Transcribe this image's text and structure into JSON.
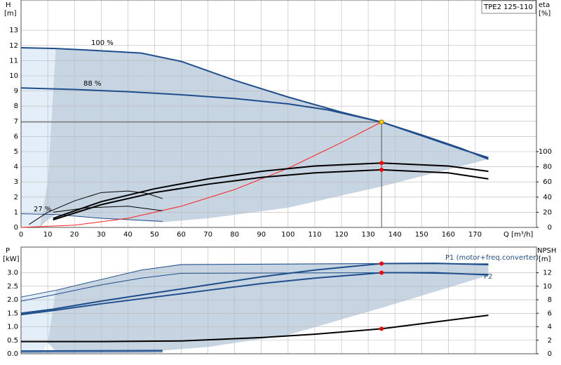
{
  "chart_data": [
    {
      "type": "line",
      "title": "TPE2 125-110",
      "x_label": "Q [m³/h]",
      "y_label": "H",
      "y_unit": "[m]",
      "y2_label": "eta",
      "y2_unit": "[%]",
      "xlim": [
        0,
        193
      ],
      "xticks": [
        0,
        10,
        20,
        30,
        40,
        50,
        60,
        70,
        80,
        90,
        100,
        110,
        120,
        130,
        140,
        150,
        160,
        170
      ],
      "ylim": [
        0,
        15
      ],
      "yticks": [
        0,
        1,
        2,
        3,
        4,
        5,
        6,
        7,
        8,
        9,
        10,
        11,
        12,
        13
      ],
      "y2lim": [
        0,
        300
      ],
      "y2ticks": [
        0,
        20,
        40,
        60,
        80,
        100
      ],
      "grid": true,
      "regions": [
        {
          "color": "#e4eef8",
          "x": [
            0,
            13,
            10,
            7,
            0
          ],
          "values": [
            11.85,
            11.8,
            3,
            0,
            0
          ]
        },
        {
          "color": "#c7d5e3",
          "x": [
            13,
            30,
            45,
            60,
            80,
            100,
            120,
            135,
            150,
            165,
            175,
            135,
            100,
            70,
            53,
            30,
            13,
            10,
            7,
            10
          ],
          "values": [
            11.8,
            11.65,
            11.5,
            10.95,
            9.7,
            8.6,
            7.6,
            6.95,
            6.1,
            5.2,
            4.5,
            2.7,
            1.3,
            0.6,
            0.35,
            0.6,
            0.85,
            0.5,
            0,
            3
          ]
        }
      ],
      "series": [
        {
          "name": "100 %",
          "color": "#1f4e8c",
          "style": "thick",
          "x": [
            0,
            13,
            30,
            45,
            60,
            80,
            100,
            120,
            135,
            150,
            165,
            175
          ],
          "values": [
            11.85,
            11.8,
            11.65,
            11.5,
            10.95,
            9.7,
            8.6,
            7.6,
            6.95,
            6.1,
            5.2,
            4.5
          ]
        },
        {
          "name": "88 %",
          "color": "#1f4e8c",
          "style": "thick",
          "x": [
            0,
            20,
            40,
            60,
            80,
            100,
            115,
            135,
            150,
            165,
            175
          ],
          "values": [
            9.2,
            9.1,
            8.95,
            8.75,
            8.5,
            8.15,
            7.75,
            6.95,
            6.05,
            5.15,
            4.6
          ]
        },
        {
          "name": "27 %",
          "color": "#1f4e8c",
          "style": "thin",
          "x": [
            0,
            13,
            30,
            53
          ],
          "values": [
            0.9,
            0.85,
            0.6,
            0.4
          ]
        },
        {
          "color": "#ff2020",
          "style": "thin",
          "x": [
            0,
            20,
            40,
            60,
            80,
            100,
            120,
            135
          ],
          "values": [
            0,
            0.15,
            0.6,
            1.4,
            2.5,
            3.9,
            5.6,
            6.95
          ]
        },
        {
          "axis": "y2",
          "color": "#000000",
          "style": "thick",
          "x": [
            12,
            30,
            50,
            70,
            90,
            110,
            135,
            160,
            175
          ],
          "values": [
            12,
            34,
            51,
            64,
            74,
            81,
            85,
            81,
            74
          ]
        },
        {
          "axis": "y2",
          "color": "#000000",
          "style": "thick",
          "x": [
            12,
            30,
            50,
            70,
            90,
            110,
            135,
            160,
            175
          ],
          "values": [
            10,
            30,
            46,
            57,
            66,
            72,
            76,
            72,
            64
          ]
        },
        {
          "axis": "y2",
          "color": "#000000",
          "style": "thin",
          "x": [
            3,
            10,
            20,
            30,
            40,
            47,
            53
          ],
          "values": [
            4,
            20,
            35,
            46,
            48,
            45,
            38
          ]
        },
        {
          "axis": "y2",
          "color": "#000000",
          "style": "thin",
          "x": [
            12,
            25,
            40,
            53
          ],
          "values": [
            20,
            26,
            28,
            22
          ]
        }
      ],
      "points": [
        {
          "x": 135,
          "value": 6.95,
          "color": "#ffd700",
          "crosshair": true
        },
        {
          "x": 135,
          "value": 85,
          "axis": "y2",
          "color": "#ff0000"
        },
        {
          "x": 135,
          "value": 76,
          "axis": "y2",
          "color": "#ff0000"
        }
      ]
    },
    {
      "type": "line",
      "y_label": "P",
      "y_unit": "[kW]",
      "y2_label": "NPSH",
      "y2_unit": "[m]",
      "xlim": [
        0,
        193
      ],
      "xticks": [
        0,
        10,
        20,
        30,
        40,
        50,
        60,
        70,
        80,
        90,
        100,
        110,
        120,
        130,
        140,
        150,
        160,
        170
      ],
      "ylim": [
        0,
        3.95
      ],
      "yticks": [
        {
          "value": 0,
          "label": "0.0"
        },
        0.5,
        {
          "value": 1,
          "label": "1.0"
        },
        1.5,
        {
          "value": 2,
          "label": "2.0"
        },
        2.5,
        {
          "value": 3,
          "label": "3.0"
        }
      ],
      "y2lim": [
        0,
        15.8
      ],
      "y2ticks": [
        0,
        2,
        4,
        6,
        8,
        10,
        12
      ],
      "grid": true,
      "regions": [
        {
          "color": "#e4eef8",
          "x": [
            0,
            13,
            10,
            8,
            0
          ],
          "values": [
            2.1,
            2.35,
            0.4,
            0.05,
            0.05
          ]
        },
        {
          "color": "#c7d5e3",
          "x": [
            13,
            30,
            45,
            60,
            135,
            175,
            175,
            135,
            100,
            70,
            53,
            13,
            10
          ],
          "values": [
            2.35,
            2.75,
            3.1,
            3.33,
            3.36,
            3.35,
            2.9,
            1.7,
            0.7,
            0.25,
            0.12,
            0.1,
            0.4
          ]
        }
      ],
      "series": [
        {
          "color": "#1f4e8c",
          "style": "thin",
          "x": [
            0,
            13,
            30,
            45,
            60,
            135,
            175
          ],
          "values": [
            2.1,
            2.35,
            2.75,
            3.1,
            3.3,
            3.34,
            3.33
          ]
        },
        {
          "color": "#1f4e8c",
          "style": "thin",
          "x": [
            0,
            13,
            30,
            45,
            60,
            135,
            175
          ],
          "values": [
            1.95,
            2.2,
            2.55,
            2.8,
            2.98,
            3.0,
            2.95
          ]
        },
        {
          "name": "P1 (motor+freq.converter)",
          "color": "#1f4e8c",
          "style": "thick",
          "x": [
            0,
            12,
            30,
            50,
            70,
            90,
            110,
            135,
            155,
            175
          ],
          "values": [
            1.5,
            1.65,
            1.95,
            2.25,
            2.55,
            2.85,
            3.1,
            3.34,
            3.35,
            3.3
          ]
        },
        {
          "name": "P2",
          "color": "#1f4e8c",
          "style": "thick",
          "x": [
            0,
            12,
            30,
            50,
            70,
            90,
            110,
            135,
            155,
            175
          ],
          "values": [
            1.45,
            1.6,
            1.85,
            2.1,
            2.35,
            2.6,
            2.8,
            3.0,
            3.0,
            2.92
          ]
        },
        {
          "axis": "y2",
          "color": "#000000",
          "style": "thick",
          "x": [
            0,
            30,
            60,
            90,
            110,
            135,
            155,
            175
          ],
          "values": [
            1.8,
            1.8,
            1.9,
            2.4,
            2.9,
            3.7,
            4.7,
            5.7
          ]
        },
        {
          "color": "#1f4e8c",
          "style": "thick",
          "x": [
            0,
            53
          ],
          "values": [
            0.1,
            0.12
          ]
        },
        {
          "color": "#1f4e8c",
          "style": "thin",
          "x": [
            0,
            53
          ],
          "values": [
            0.05,
            0.07
          ]
        }
      ],
      "points": [
        {
          "x": 135,
          "value": 3.34,
          "color": "#ff0000"
        },
        {
          "x": 135,
          "value": 3.0,
          "color": "#ff0000"
        },
        {
          "x": 135,
          "value": 3.7,
          "axis": "y2",
          "color": "#ff0000"
        }
      ]
    }
  ]
}
